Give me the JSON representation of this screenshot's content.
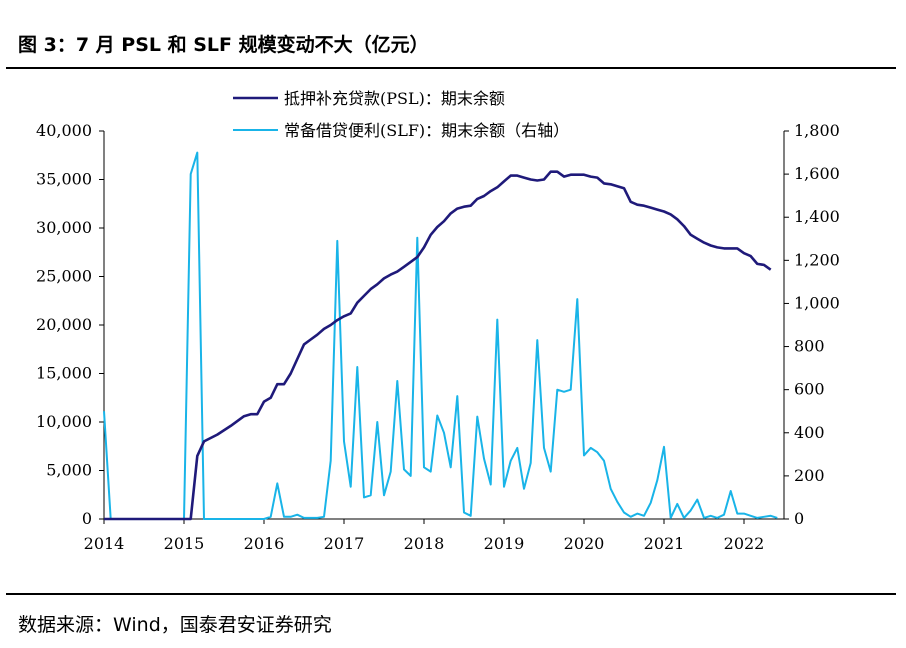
{
  "title": "图 3：7 月 PSL 和 SLF 规模变动不大（亿元）",
  "source": "数据来源：Wind，国泰君安证券研究",
  "chart_data": {
    "type": "line",
    "title": "图 3：7 月 PSL 和 SLF 规模变动不大（亿元）",
    "xlabel": "",
    "ylabel": "",
    "x_ticks": [
      "2014",
      "2015",
      "2016",
      "2017",
      "2018",
      "2019",
      "2020",
      "2021",
      "2022"
    ],
    "xlim": [
      "2014-01",
      "2022-07"
    ],
    "y_left": {
      "ticks": [
        "0",
        "5,000",
        "10,000",
        "15,000",
        "20,000",
        "25,000",
        "30,000",
        "35,000",
        "40,000"
      ],
      "ylim": [
        0,
        40000
      ]
    },
    "y_right": {
      "ticks": [
        "0",
        "200",
        "400",
        "600",
        "800",
        "1,000",
        "1,200",
        "1,400",
        "1,600",
        "1,800"
      ],
      "ylim": [
        0,
        1800
      ]
    },
    "legend_position": "top-center",
    "grid": false,
    "series": [
      {
        "name": "抵押补充贷款(PSL)：期末余额",
        "axis": "left",
        "color": "#1f1a7a",
        "points": [
          [
            "2014-01",
            0
          ],
          [
            "2014-06",
            0
          ],
          [
            "2014-12",
            0
          ],
          [
            "2015-02",
            0
          ],
          [
            "2015-03",
            6500
          ],
          [
            "2015-04",
            8000
          ],
          [
            "2015-06",
            8700
          ],
          [
            "2015-08",
            9600
          ],
          [
            "2015-10",
            10600
          ],
          [
            "2015-11",
            10800
          ],
          [
            "2015-12",
            10800
          ],
          [
            "2016-01",
            12100
          ],
          [
            "2016-02",
            12500
          ],
          [
            "2016-03",
            13900
          ],
          [
            "2016-04",
            13900
          ],
          [
            "2016-05",
            15000
          ],
          [
            "2016-06",
            16500
          ],
          [
            "2016-07",
            18000
          ],
          [
            "2016-08",
            18500
          ],
          [
            "2016-09",
            19000
          ],
          [
            "2016-10",
            19600
          ],
          [
            "2016-11",
            20000
          ],
          [
            "2016-12",
            20500
          ],
          [
            "2017-01",
            20900
          ],
          [
            "2017-02",
            21200
          ],
          [
            "2017-03",
            22300
          ],
          [
            "2017-04",
            23000
          ],
          [
            "2017-05",
            23700
          ],
          [
            "2017-06",
            24200
          ],
          [
            "2017-07",
            24800
          ],
          [
            "2017-08",
            25200
          ],
          [
            "2017-09",
            25500
          ],
          [
            "2017-10",
            26000
          ],
          [
            "2017-11",
            26500
          ],
          [
            "2017-12",
            27000
          ],
          [
            "2018-01",
            28000
          ],
          [
            "2018-02",
            29300
          ],
          [
            "2018-03",
            30100
          ],
          [
            "2018-04",
            30700
          ],
          [
            "2018-05",
            31500
          ],
          [
            "2018-06",
            32000
          ],
          [
            "2018-07",
            32200
          ],
          [
            "2018-08",
            32300
          ],
          [
            "2018-09",
            33000
          ],
          [
            "2018-10",
            33300
          ],
          [
            "2018-11",
            33800
          ],
          [
            "2018-12",
            34200
          ],
          [
            "2019-01",
            34800
          ],
          [
            "2019-02",
            35400
          ],
          [
            "2019-03",
            35400
          ],
          [
            "2019-04",
            35200
          ],
          [
            "2019-05",
            35000
          ],
          [
            "2019-06",
            34900
          ],
          [
            "2019-07",
            35000
          ],
          [
            "2019-08",
            35800
          ],
          [
            "2019-09",
            35800
          ],
          [
            "2019-10",
            35300
          ],
          [
            "2019-11",
            35500
          ],
          [
            "2019-12",
            35500
          ],
          [
            "2020-01",
            35500
          ],
          [
            "2020-02",
            35300
          ],
          [
            "2020-03",
            35200
          ],
          [
            "2020-04",
            34600
          ],
          [
            "2020-05",
            34500
          ],
          [
            "2020-06",
            34300
          ],
          [
            "2020-07",
            34100
          ],
          [
            "2020-08",
            32700
          ],
          [
            "2020-09",
            32400
          ],
          [
            "2020-10",
            32300
          ],
          [
            "2020-11",
            32100
          ],
          [
            "2020-12",
            31900
          ],
          [
            "2021-01",
            31700
          ],
          [
            "2021-02",
            31400
          ],
          [
            "2021-03",
            30900
          ],
          [
            "2021-04",
            30200
          ],
          [
            "2021-05",
            29300
          ],
          [
            "2021-06",
            28900
          ],
          [
            "2021-07",
            28500
          ],
          [
            "2021-08",
            28200
          ],
          [
            "2021-09",
            28000
          ],
          [
            "2021-10",
            27900
          ],
          [
            "2021-11",
            27900
          ],
          [
            "2021-12",
            27900
          ],
          [
            "2022-01",
            27400
          ],
          [
            "2022-02",
            27100
          ],
          [
            "2022-03",
            26300
          ],
          [
            "2022-04",
            26200
          ],
          [
            "2022-05",
            25700
          ]
        ]
      },
      {
        "name": "常备借贷便利(SLF)：期末余额（右轴）",
        "axis": "right",
        "color": "#19b4e8",
        "points": [
          [
            "2014-01",
            500
          ],
          [
            "2014-02",
            0
          ],
          [
            "2014-06",
            0
          ],
          [
            "2014-12",
            0
          ],
          [
            "2015-01",
            0
          ],
          [
            "2015-02",
            1600
          ],
          [
            "2015-03",
            1700
          ],
          [
            "2015-04",
            0
          ],
          [
            "2015-06",
            0
          ],
          [
            "2015-12",
            0
          ],
          [
            "2016-01",
            0
          ],
          [
            "2016-02",
            10
          ],
          [
            "2016-03",
            165
          ],
          [
            "2016-04",
            10
          ],
          [
            "2016-05",
            10
          ],
          [
            "2016-06",
            20
          ],
          [
            "2016-07",
            5
          ],
          [
            "2016-08",
            5
          ],
          [
            "2016-09",
            5
          ],
          [
            "2016-10",
            10
          ],
          [
            "2016-11",
            270
          ],
          [
            "2016-12",
            1290
          ],
          [
            "2017-01",
            360
          ],
          [
            "2017-02",
            150
          ],
          [
            "2017-03",
            705
          ],
          [
            "2017-04",
            100
          ],
          [
            "2017-05",
            110
          ],
          [
            "2017-06",
            450
          ],
          [
            "2017-07",
            110
          ],
          [
            "2017-08",
            220
          ],
          [
            "2017-09",
            640
          ],
          [
            "2017-10",
            230
          ],
          [
            "2017-11",
            200
          ],
          [
            "2017-12",
            1305
          ],
          [
            "2018-01",
            240
          ],
          [
            "2018-02",
            220
          ],
          [
            "2018-03",
            480
          ],
          [
            "2018-04",
            400
          ],
          [
            "2018-05",
            240
          ],
          [
            "2018-06",
            570
          ],
          [
            "2018-07",
            30
          ],
          [
            "2018-08",
            15
          ],
          [
            "2018-09",
            475
          ],
          [
            "2018-10",
            280
          ],
          [
            "2018-11",
            160
          ],
          [
            "2018-12",
            925
          ],
          [
            "2019-01",
            150
          ],
          [
            "2019-02",
            270
          ],
          [
            "2019-03",
            330
          ],
          [
            "2019-04",
            140
          ],
          [
            "2019-05",
            260
          ],
          [
            "2019-06",
            830
          ],
          [
            "2019-07",
            330
          ],
          [
            "2019-08",
            220
          ],
          [
            "2019-09",
            600
          ],
          [
            "2019-10",
            590
          ],
          [
            "2019-11",
            600
          ],
          [
            "2019-12",
            1020
          ],
          [
            "2020-01",
            295
          ],
          [
            "2020-02",
            330
          ],
          [
            "2020-03",
            310
          ],
          [
            "2020-04",
            270
          ],
          [
            "2020-05",
            140
          ],
          [
            "2020-06",
            80
          ],
          [
            "2020-07",
            30
          ],
          [
            "2020-08",
            10
          ],
          [
            "2020-09",
            25
          ],
          [
            "2020-10",
            15
          ],
          [
            "2020-11",
            75
          ],
          [
            "2020-12",
            180
          ],
          [
            "2021-01",
            335
          ],
          [
            "2021-02",
            5
          ],
          [
            "2021-03",
            70
          ],
          [
            "2021-04",
            5
          ],
          [
            "2021-05",
            40
          ],
          [
            "2021-06",
            90
          ],
          [
            "2021-07",
            5
          ],
          [
            "2021-08",
            15
          ],
          [
            "2021-09",
            5
          ],
          [
            "2021-10",
            20
          ],
          [
            "2021-11",
            130
          ],
          [
            "2021-12",
            25
          ],
          [
            "2022-01",
            25
          ],
          [
            "2022-02",
            15
          ],
          [
            "2022-03",
            5
          ],
          [
            "2022-04",
            10
          ],
          [
            "2022-05",
            15
          ],
          [
            "2022-06",
            5
          ]
        ]
      }
    ]
  }
}
